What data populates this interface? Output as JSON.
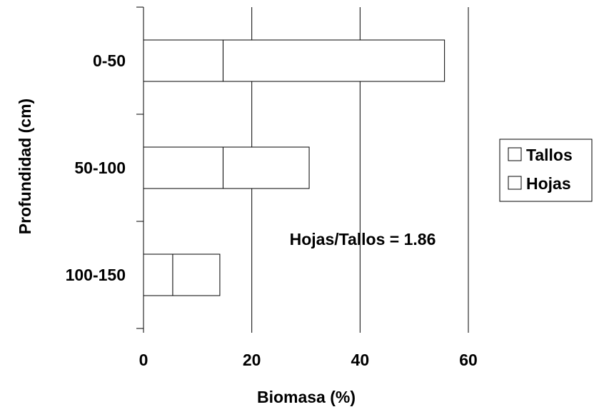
{
  "chart_data": {
    "type": "bar",
    "orientation": "horizontal",
    "stacked": true,
    "categories": [
      "0-50",
      "50-100",
      "100-150"
    ],
    "series": [
      {
        "name": "Tallos",
        "values": [
          14.7,
          14.7,
          5.4
        ],
        "color": "#ffffff"
      },
      {
        "name": "Hojas",
        "values": [
          40.9,
          15.9,
          8.7
        ],
        "color": "#ffffff"
      }
    ],
    "xlabel": "Biomasa (%)",
    "ylabel": "Profundidad (cm)",
    "xlim": [
      0,
      60
    ],
    "xticks": [
      "0",
      "20",
      "40",
      "60"
    ],
    "grid": "vertical",
    "legend": "right",
    "annotation": "Hojas/Tallos = 1.86"
  }
}
